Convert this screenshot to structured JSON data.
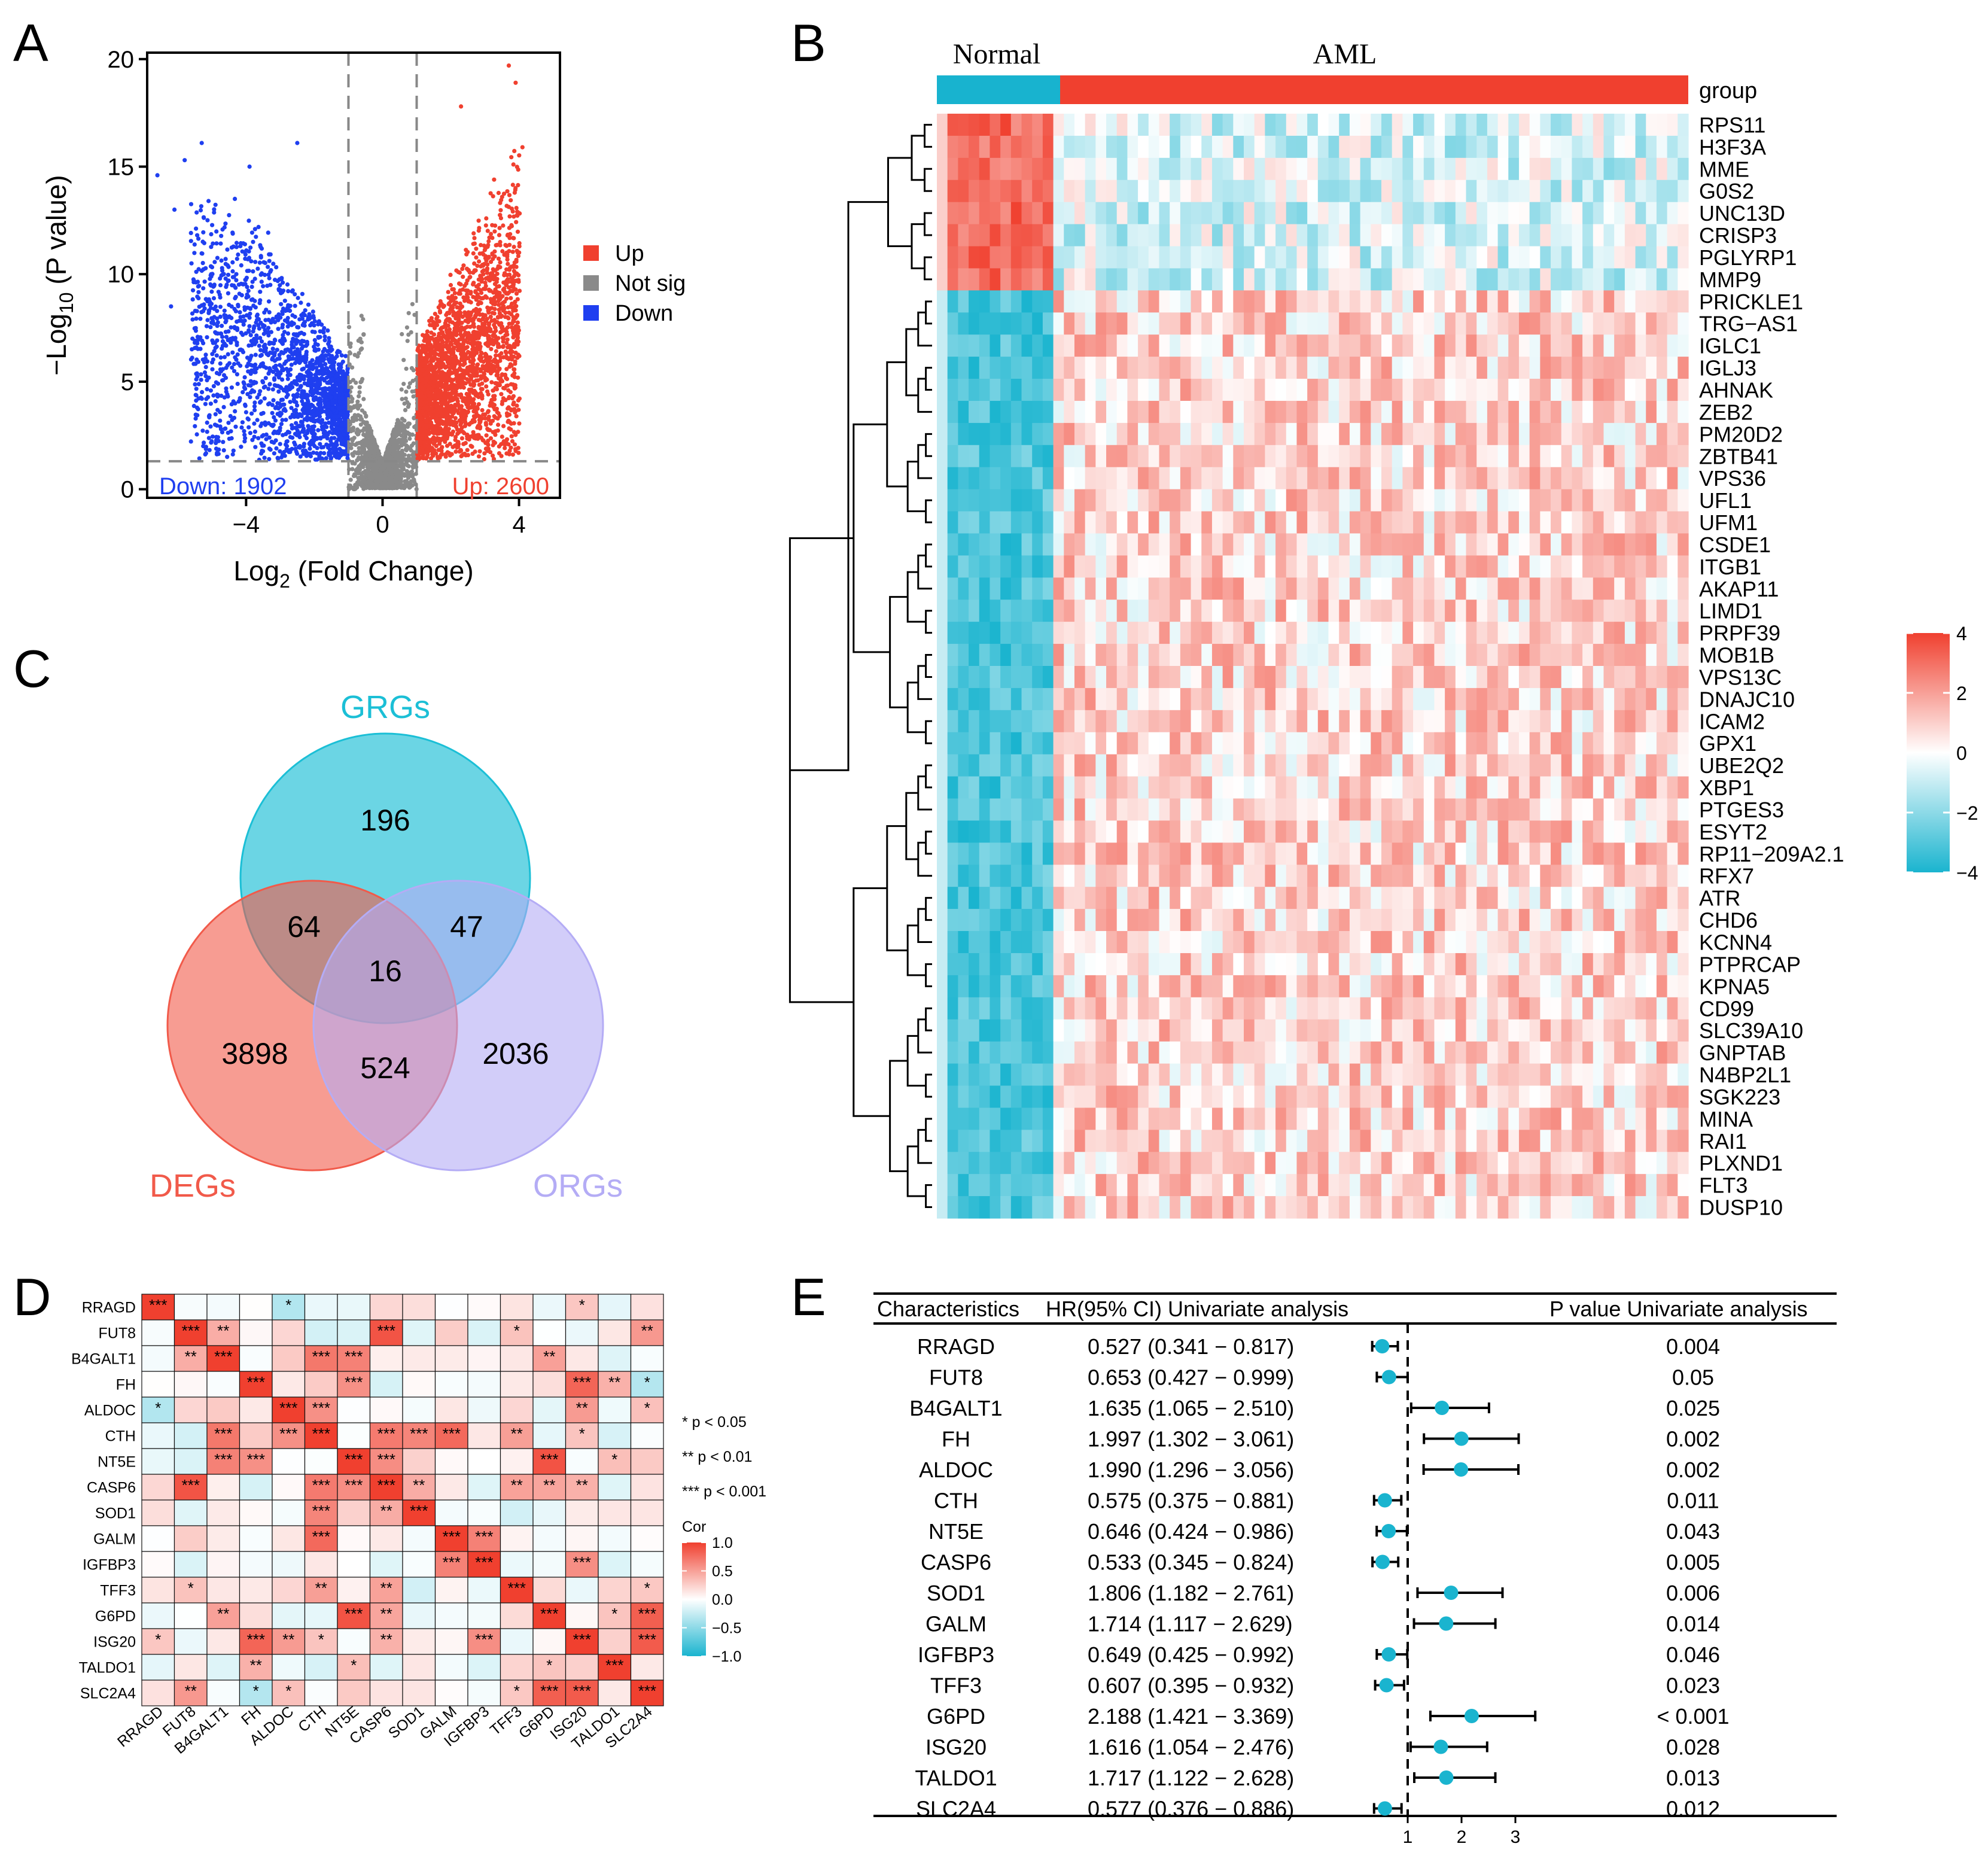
{
  "panels": [
    "A",
    "B",
    "C",
    "D",
    "E"
  ],
  "chart_data": [
    {
      "panel": "A",
      "type": "scatter",
      "title": "",
      "xlabel_main": "Log",
      "xlabel_sub": "2",
      "xlabel_rest": " (Fold Change)",
      "ylabel_main": "−Log",
      "ylabel_sub": "10",
      "ylabel_rest": " (P value)",
      "xlim": [
        -6.9,
        5.2
      ],
      "ylim": [
        -0.4,
        20.3
      ],
      "xticks": [
        -4,
        0,
        4
      ],
      "xtick_labels": [
        "−4",
        "0",
        "4"
      ],
      "yticks": [
        0,
        5,
        10,
        15,
        20
      ],
      "ytick_labels": [
        "0",
        "5",
        "10",
        "15",
        "20"
      ],
      "thresholds": {
        "log2fc": [
          -1,
          1
        ],
        "neglog10p": 1.3
      },
      "legend": [
        {
          "label": "Up",
          "color": "#f0402f"
        },
        {
          "label": "Not sig",
          "color": "#8a8a8a"
        },
        {
          "label": "Down",
          "color": "#1f3ff0"
        }
      ],
      "annotations": {
        "down": "Down: 1902",
        "up": "Up: 2600"
      },
      "counts": {
        "down": 1902,
        "up": 2600
      },
      "outliers": [
        {
          "x": 3.7,
          "y": 19.7
        },
        {
          "x": 3.9,
          "y": 18.9
        },
        {
          "x": 4.1,
          "y": 15.9
        },
        {
          "x": 2.3,
          "y": 17.8
        },
        {
          "x": -5.8,
          "y": 15.3
        },
        {
          "x": -6.6,
          "y": 14.6
        },
        {
          "x": -5.3,
          "y": 16.1
        },
        {
          "x": -2.5,
          "y": 16.1
        },
        {
          "x": -3.9,
          "y": 15.0
        },
        {
          "x": -5.1,
          "y": 13.4
        },
        {
          "x": -6.1,
          "y": 13.0
        },
        {
          "x": -6.2,
          "y": 8.5
        },
        {
          "x": -5.6,
          "y": 10.5
        }
      ]
    },
    {
      "panel": "B",
      "type": "heatmap",
      "groups": [
        "Normal",
        "AML"
      ],
      "group_colors": {
        "Normal": "#18b3cf",
        "AML": "#f0402f"
      },
      "group_row_label": "group",
      "normal_samples": 11,
      "aml_samples": 60,
      "genes": [
        "RPS11",
        "H3F3A",
        "MME",
        "G0S2",
        "UNC13D",
        "CRISP3",
        "PGLYRP1",
        "MMP9",
        "PRICKLE1",
        "TRG−AS1",
        "IGLC1",
        "IGLJ3",
        "AHNAK",
        "ZEB2",
        "PM20D2",
        "ZBTB41",
        "VPS36",
        "UFL1",
        "UFM1",
        "CSDE1",
        "ITGB1",
        "AKAP11",
        "LIMD1",
        "PRPF39",
        "MOB1B",
        "VPS13C",
        "DNAJC10",
        "ICAM2",
        "GPX1",
        "UBE2Q2",
        "XBP1",
        "PTGES3",
        "ESYT2",
        "RP11−209A2.1",
        "RFX7",
        "ATR",
        "CHD6",
        "KCNN4",
        "PTPRCAP",
        "KPNA5",
        "CD99",
        "SLC39A10",
        "GNPTAB",
        "N4BP2L1",
        "SGK223",
        "MINA",
        "RAI1",
        "PLXND1",
        "FLT3",
        "DUSP10"
      ],
      "up_in_normal_count": 8,
      "colorbar_ticks": [
        4,
        2,
        0,
        -2,
        -4
      ],
      "colorbar_labels": [
        "4",
        "2",
        "0",
        "−2",
        "−4"
      ],
      "colorscale": [
        "#1ab4cf",
        "#ffffff",
        "#f0402f"
      ]
    },
    {
      "panel": "C",
      "type": "venn",
      "sets": [
        {
          "name": "GRGs",
          "color": "#1bbfd6"
        },
        {
          "name": "DEGs",
          "color": "#f15a4a"
        },
        {
          "name": "ORGs",
          "color": "#b4acf5"
        }
      ],
      "regions": {
        "GRGs_only": "196",
        "DEGs_only": "3898",
        "ORGs_only": "2036",
        "GRGs_DEGs": "64",
        "GRGs_ORGs": "47",
        "DEGs_ORGs": "524",
        "all": "16"
      }
    },
    {
      "panel": "D",
      "type": "heatmap",
      "genes": [
        "RRAGD",
        "FUT8",
        "B4GALT1",
        "FH",
        "ALDOC",
        "CTH",
        "NT5E",
        "CASP6",
        "SOD1",
        "GALM",
        "IGFBP3",
        "TFF3",
        "G6PD",
        "ISG20",
        "TALDO1",
        "SLC2A4"
      ],
      "sig_legend": [
        "* p < 0.05",
        "** p < 0.01",
        "*** p < 0.001"
      ],
      "colorbar_title": "Cor",
      "colorbar_ticks": [
        1.0,
        0.5,
        0.0,
        -0.5,
        -1.0
      ],
      "colorbar_labels": [
        "1.0",
        "0.5",
        "0.0",
        "−0.5",
        "−1.0"
      ],
      "colorscale": [
        "#1ab4cf",
        "#ffffff",
        "#f0402f"
      ]
    },
    {
      "panel": "E",
      "type": "forest",
      "headers": [
        "Characteristics",
        "HR(95% CI) Univariate analysis",
        "P value Univariate analysis"
      ],
      "rows": [
        {
          "name": "RRAGD",
          "hr": 0.527,
          "lo": 0.341,
          "hi": 0.817,
          "label": "0.527 (0.341 − 0.817)",
          "p": "0.004"
        },
        {
          "name": "FUT8",
          "hr": 0.653,
          "lo": 0.427,
          "hi": 0.999,
          "label": "0.653 (0.427 − 0.999)",
          "p": "0.05"
        },
        {
          "name": "B4GALT1",
          "hr": 1.635,
          "lo": 1.065,
          "hi": 2.51,
          "label": "1.635 (1.065 − 2.510)",
          "p": "0.025"
        },
        {
          "name": "FH",
          "hr": 1.997,
          "lo": 1.302,
          "hi": 3.061,
          "label": "1.997 (1.302 − 3.061)",
          "p": "0.002"
        },
        {
          "name": "ALDOC",
          "hr": 1.99,
          "lo": 1.296,
          "hi": 3.056,
          "label": "1.990 (1.296 − 3.056)",
          "p": "0.002"
        },
        {
          "name": "CTH",
          "hr": 0.575,
          "lo": 0.375,
          "hi": 0.881,
          "label": "0.575 (0.375 − 0.881)",
          "p": "0.011"
        },
        {
          "name": "NT5E",
          "hr": 0.646,
          "lo": 0.424,
          "hi": 0.986,
          "label": "0.646 (0.424 − 0.986)",
          "p": "0.043"
        },
        {
          "name": "CASP6",
          "hr": 0.533,
          "lo": 0.345,
          "hi": 0.824,
          "label": "0.533 (0.345 − 0.824)",
          "p": "0.005"
        },
        {
          "name": "SOD1",
          "hr": 1.806,
          "lo": 1.182,
          "hi": 2.761,
          "label": "1.806 (1.182 − 2.761)",
          "p": "0.006"
        },
        {
          "name": "GALM",
          "hr": 1.714,
          "lo": 1.117,
          "hi": 2.629,
          "label": "1.714 (1.117 − 2.629)",
          "p": "0.014"
        },
        {
          "name": "IGFBP3",
          "hr": 0.649,
          "lo": 0.425,
          "hi": 0.992,
          "label": "0.649 (0.425 − 0.992)",
          "p": "0.046"
        },
        {
          "name": "TFF3",
          "hr": 0.607,
          "lo": 0.395,
          "hi": 0.932,
          "label": "0.607 (0.395 − 0.932)",
          "p": "0.023"
        },
        {
          "name": "G6PD",
          "hr": 2.188,
          "lo": 1.421,
          "hi": 3.369,
          "label": "2.188 (1.421 − 3.369)",
          "p": "< 0.001"
        },
        {
          "name": "ISG20",
          "hr": 1.616,
          "lo": 1.054,
          "hi": 2.476,
          "label": "1.616 (1.054 − 2.476)",
          "p": "0.028"
        },
        {
          "name": "TALDO1",
          "hr": 1.717,
          "lo": 1.122,
          "hi": 2.628,
          "label": "1.717 (1.122 − 2.628)",
          "p": "0.013"
        },
        {
          "name": "SLC2A4",
          "hr": 0.577,
          "lo": 0.376,
          "hi": 0.886,
          "label": "0.577 (0.376 − 0.886)",
          "p": "0.012"
        }
      ],
      "xticks": [
        1,
        2,
        3
      ],
      "xtick_labels": [
        "1",
        "2",
        "3"
      ],
      "reference_line": 1,
      "point_color": "#1ab4cf"
    }
  ]
}
